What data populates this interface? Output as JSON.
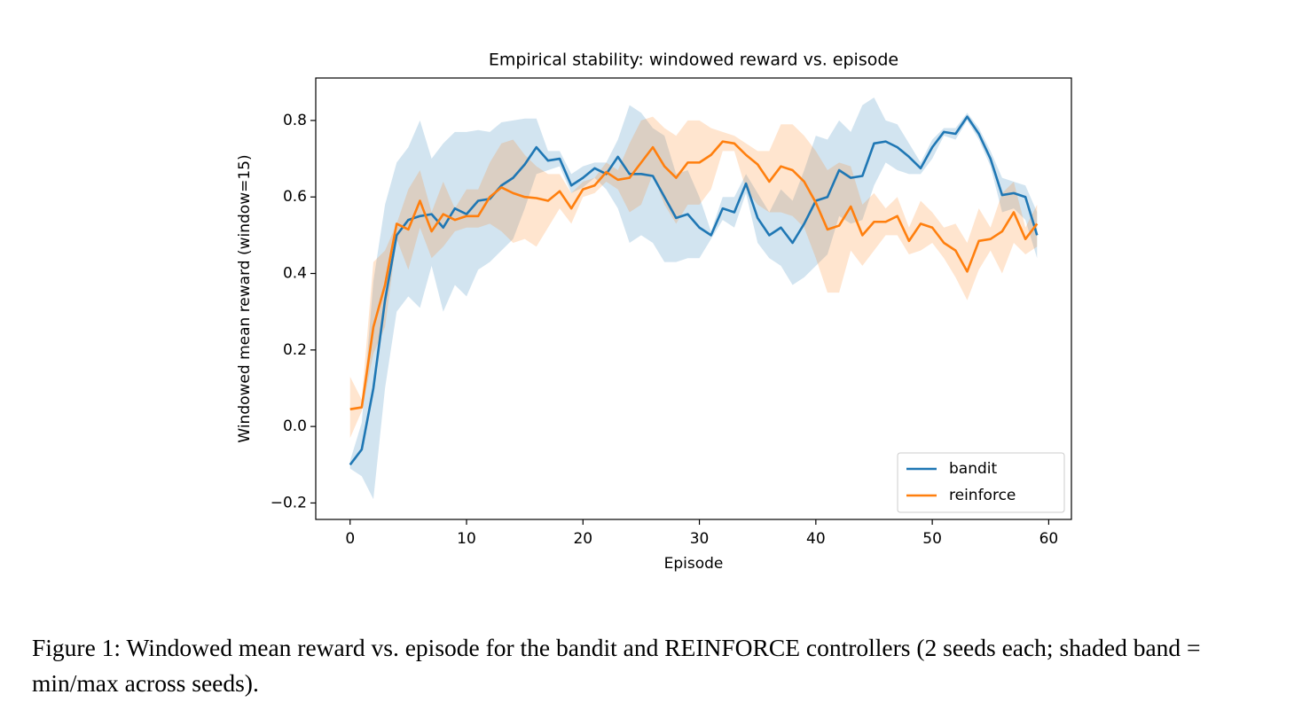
{
  "chart_data": {
    "type": "line",
    "title": "Empirical stability: windowed reward vs. episode",
    "xlabel": "Episode",
    "ylabel": "Windowed mean reward (window=15)",
    "x": [
      0,
      1,
      2,
      3,
      4,
      5,
      6,
      7,
      8,
      9,
      10,
      11,
      12,
      13,
      14,
      15,
      16,
      17,
      18,
      19,
      20,
      21,
      22,
      23,
      24,
      25,
      26,
      27,
      28,
      29,
      30,
      31,
      32,
      33,
      34,
      35,
      36,
      37,
      38,
      39,
      40,
      41,
      42,
      43,
      44,
      45,
      46,
      47,
      48,
      49,
      50,
      51,
      52,
      53,
      54,
      55,
      56,
      57,
      58,
      59
    ],
    "xlim": [
      -2.95,
      61.95
    ],
    "xticks": [
      0,
      10,
      20,
      30,
      40,
      50,
      60
    ],
    "ylim": [
      -0.243,
      0.911
    ],
    "yticks": [
      {
        "value": -0.2,
        "label": "−0.2"
      },
      {
        "value": 0,
        "label": "0.0"
      },
      0.2,
      0.4,
      0.6,
      0.8
    ],
    "legend": "lower right",
    "series": [
      {
        "name": "bandit",
        "color": "#1f77b4",
        "values": [
          -0.1,
          -0.06,
          0.1,
          0.33,
          0.5,
          0.54,
          0.55,
          0.555,
          0.52,
          0.57,
          0.555,
          0.59,
          0.595,
          0.63,
          0.65,
          0.685,
          0.73,
          0.695,
          0.7,
          0.63,
          0.65,
          0.675,
          0.66,
          0.705,
          0.66,
          0.66,
          0.655,
          0.6,
          0.545,
          0.555,
          0.52,
          0.5,
          0.57,
          0.56,
          0.635,
          0.545,
          0.5,
          0.52,
          0.48,
          0.53,
          0.59,
          0.6,
          0.67,
          0.65,
          0.655,
          0.74,
          0.745,
          0.73,
          0.705,
          0.675,
          0.73,
          0.77,
          0.765,
          0.81,
          0.765,
          0.7,
          0.605,
          0.61,
          0.6,
          0.5
        ],
        "band_min": [
          -0.11,
          -0.13,
          -0.19,
          0.1,
          0.3,
          0.34,
          0.31,
          0.42,
          0.3,
          0.37,
          0.34,
          0.41,
          0.43,
          0.46,
          0.49,
          0.57,
          0.66,
          0.67,
          0.68,
          0.61,
          0.625,
          0.65,
          0.62,
          0.57,
          0.48,
          0.5,
          0.48,
          0.43,
          0.43,
          0.44,
          0.44,
          0.49,
          0.54,
          0.52,
          0.61,
          0.48,
          0.44,
          0.42,
          0.37,
          0.39,
          0.42,
          0.45,
          0.55,
          0.53,
          0.54,
          0.63,
          0.69,
          0.67,
          0.66,
          0.66,
          0.7,
          0.76,
          0.75,
          0.8,
          0.75,
          0.68,
          0.56,
          0.57,
          0.54,
          0.44
        ],
        "band_max": [
          -0.09,
          0.01,
          0.38,
          0.58,
          0.69,
          0.73,
          0.8,
          0.7,
          0.74,
          0.77,
          0.77,
          0.775,
          0.77,
          0.795,
          0.8,
          0.805,
          0.805,
          0.72,
          0.72,
          0.66,
          0.68,
          0.69,
          0.69,
          0.75,
          0.84,
          0.82,
          0.78,
          0.76,
          0.66,
          0.67,
          0.6,
          0.51,
          0.6,
          0.6,
          0.66,
          0.61,
          0.56,
          0.62,
          0.59,
          0.67,
          0.76,
          0.75,
          0.8,
          0.77,
          0.84,
          0.86,
          0.8,
          0.79,
          0.74,
          0.69,
          0.75,
          0.78,
          0.78,
          0.82,
          0.78,
          0.72,
          0.65,
          0.64,
          0.63,
          0.56
        ]
      },
      {
        "name": "reinforce",
        "color": "#ff7f0e",
        "values": [
          0.045,
          0.05,
          0.26,
          0.37,
          0.53,
          0.515,
          0.59,
          0.51,
          0.555,
          0.54,
          0.55,
          0.55,
          0.6,
          0.625,
          0.61,
          0.6,
          0.597,
          0.59,
          0.615,
          0.57,
          0.62,
          0.63,
          0.665,
          0.645,
          0.65,
          0.69,
          0.73,
          0.68,
          0.65,
          0.69,
          0.69,
          0.71,
          0.745,
          0.74,
          0.71,
          0.685,
          0.64,
          0.68,
          0.67,
          0.64,
          0.585,
          0.515,
          0.525,
          0.575,
          0.5,
          0.535,
          0.535,
          0.55,
          0.485,
          0.53,
          0.52,
          0.48,
          0.46,
          0.405,
          0.485,
          0.49,
          0.51,
          0.56,
          0.49,
          0.53
        ],
        "band_min": [
          -0.03,
          0.04,
          0.19,
          0.26,
          0.49,
          0.41,
          0.52,
          0.44,
          0.47,
          0.51,
          0.52,
          0.52,
          0.53,
          0.51,
          0.48,
          0.49,
          0.47,
          0.52,
          0.57,
          0.53,
          0.6,
          0.61,
          0.64,
          0.62,
          0.56,
          0.58,
          0.66,
          0.58,
          0.53,
          0.58,
          0.58,
          0.62,
          0.72,
          0.72,
          0.62,
          0.58,
          0.56,
          0.56,
          0.55,
          0.52,
          0.44,
          0.35,
          0.35,
          0.46,
          0.42,
          0.46,
          0.5,
          0.5,
          0.45,
          0.46,
          0.48,
          0.44,
          0.39,
          0.33,
          0.41,
          0.46,
          0.4,
          0.48,
          0.45,
          0.47
        ],
        "band_max": [
          0.13,
          0.07,
          0.43,
          0.46,
          0.53,
          0.62,
          0.67,
          0.56,
          0.64,
          0.57,
          0.62,
          0.62,
          0.69,
          0.74,
          0.75,
          0.71,
          0.68,
          0.66,
          0.66,
          0.61,
          0.64,
          0.65,
          0.69,
          0.67,
          0.74,
          0.8,
          0.81,
          0.78,
          0.76,
          0.8,
          0.8,
          0.78,
          0.77,
          0.76,
          0.74,
          0.72,
          0.72,
          0.79,
          0.79,
          0.76,
          0.72,
          0.67,
          0.69,
          0.68,
          0.58,
          0.61,
          0.57,
          0.6,
          0.52,
          0.59,
          0.56,
          0.52,
          0.53,
          0.48,
          0.57,
          0.52,
          0.61,
          0.64,
          0.52,
          0.58
        ]
      }
    ],
    "caption": "Figure 1: Windowed mean reward vs. episode for the bandit and REINFORCE controllers (2 seeds each; shaded band = min/max across seeds)."
  }
}
